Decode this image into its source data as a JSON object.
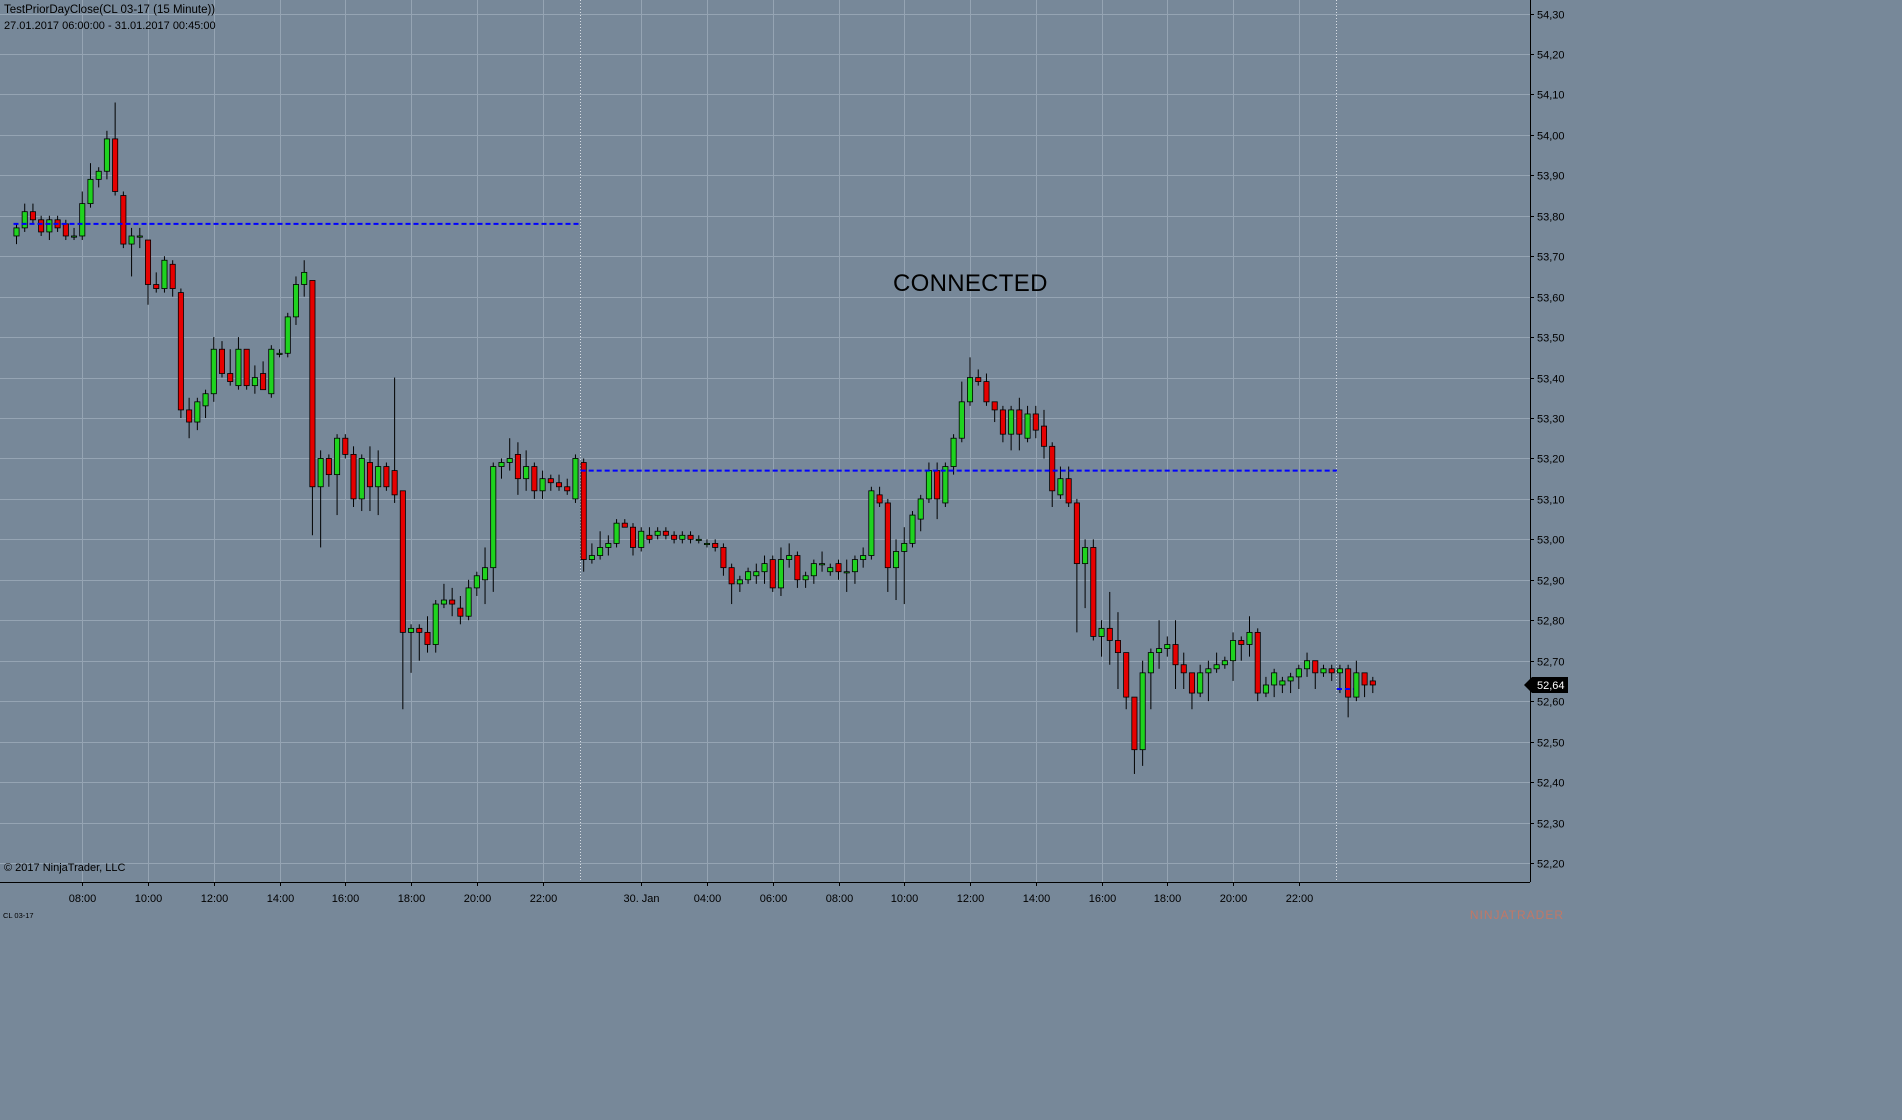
{
  "header": {
    "title": "TestPriorDayClose(CL 03-17 (15 Minute))",
    "range": "27.01.2017 06:00:00 - 31.01.2017 00:45:00"
  },
  "watermark": "CONNECTED",
  "footer": {
    "copyright": "© 2017 NinjaTrader, LLC",
    "instrument": "CL 03-17",
    "brand": "NINJATRADER"
  },
  "colors": {
    "background": "#778899",
    "up": "#1fd31f",
    "down": "#e60000",
    "prior_close_line": "#0000ff",
    "price_badge": "#000000"
  },
  "chart_data": {
    "type": "candlestick",
    "interval": "15 Minute",
    "yrange": [
      52.16,
      54.36
    ],
    "y_ticks": [
      {
        "v": 54.3,
        "label": "54,30"
      },
      {
        "v": 54.2,
        "label": "54,20"
      },
      {
        "v": 54.1,
        "label": "54,10"
      },
      {
        "v": 54.0,
        "label": "54,00"
      },
      {
        "v": 53.9,
        "label": "53,90"
      },
      {
        "v": 53.8,
        "label": "53,80"
      },
      {
        "v": 53.7,
        "label": "53,70"
      },
      {
        "v": 53.6,
        "label": "53,60"
      },
      {
        "v": 53.5,
        "label": "53,50"
      },
      {
        "v": 53.4,
        "label": "53,40"
      },
      {
        "v": 53.3,
        "label": "53,30"
      },
      {
        "v": 53.2,
        "label": "53,20"
      },
      {
        "v": 53.1,
        "label": "53,10"
      },
      {
        "v": 53.0,
        "label": "53,00"
      },
      {
        "v": 52.9,
        "label": "52,90"
      },
      {
        "v": 52.8,
        "label": "52,80"
      },
      {
        "v": 52.7,
        "label": "52,70"
      },
      {
        "v": 52.6,
        "label": "52,60"
      },
      {
        "v": 52.5,
        "label": "52,50"
      },
      {
        "v": 52.4,
        "label": "52,40"
      },
      {
        "v": 52.3,
        "label": "52,30"
      },
      {
        "v": 52.2,
        "label": "52,20"
      }
    ],
    "x_ticks": [
      {
        "label": "08:00",
        "i": 8
      },
      {
        "label": "10:00",
        "i": 16
      },
      {
        "label": "12:00",
        "i": 24
      },
      {
        "label": "14:00",
        "i": 32
      },
      {
        "label": "16:00",
        "i": 40
      },
      {
        "label": "18:00",
        "i": 48
      },
      {
        "label": "20:00",
        "i": 56
      },
      {
        "label": "22:00",
        "i": 64
      },
      {
        "label": "30. Jan",
        "i": 76
      },
      {
        "label": "04:00",
        "i": 84
      },
      {
        "label": "06:00",
        "i": 92
      },
      {
        "label": "08:00",
        "i": 100
      },
      {
        "label": "10:00",
        "i": 108
      },
      {
        "label": "12:00",
        "i": 116
      },
      {
        "label": "14:00",
        "i": 124
      },
      {
        "label": "16:00",
        "i": 132
      },
      {
        "label": "18:00",
        "i": 140
      },
      {
        "label": "20:00",
        "i": 148
      },
      {
        "label": "22:00",
        "i": 156
      }
    ],
    "session_breaks": [
      68.5,
      160.5
    ],
    "prior_close_lines": [
      {
        "price": 53.78,
        "from": 0,
        "to": 69
      },
      {
        "price": 53.17,
        "from": 69,
        "to": 161
      },
      {
        "price": 52.63,
        "from": 161,
        "to": 163
      }
    ],
    "last_price": {
      "value": 52.64,
      "label": "52,64"
    },
    "ohlc": [
      [
        53.75,
        53.78,
        53.73,
        53.77
      ],
      [
        53.77,
        53.83,
        53.76,
        53.81
      ],
      [
        53.81,
        53.83,
        53.78,
        53.79
      ],
      [
        53.79,
        53.8,
        53.75,
        53.76
      ],
      [
        53.76,
        53.8,
        53.74,
        53.79
      ],
      [
        53.79,
        53.8,
        53.76,
        53.77
      ],
      [
        53.78,
        53.79,
        53.74,
        53.75
      ],
      [
        53.75,
        53.77,
        53.74,
        53.75
      ],
      [
        53.75,
        53.86,
        53.74,
        53.83
      ],
      [
        53.83,
        53.93,
        53.82,
        53.89
      ],
      [
        53.89,
        53.92,
        53.87,
        53.91
      ],
      [
        53.91,
        54.01,
        53.89,
        53.99
      ],
      [
        53.99,
        54.08,
        53.85,
        53.86
      ],
      [
        53.85,
        53.86,
        53.72,
        53.73
      ],
      [
        53.73,
        53.77,
        53.65,
        53.75
      ],
      [
        53.75,
        53.77,
        53.72,
        53.75
      ],
      [
        53.74,
        53.74,
        53.58,
        53.63
      ],
      [
        53.63,
        53.66,
        53.61,
        53.62
      ],
      [
        53.62,
        53.7,
        53.61,
        53.69
      ],
      [
        53.68,
        53.69,
        53.6,
        53.62
      ],
      [
        53.61,
        53.62,
        53.3,
        53.32
      ],
      [
        53.32,
        53.35,
        53.25,
        53.29
      ],
      [
        53.29,
        53.35,
        53.27,
        53.34
      ],
      [
        53.33,
        53.37,
        53.3,
        53.36
      ],
      [
        53.36,
        53.5,
        53.34,
        53.47
      ],
      [
        53.47,
        53.49,
        53.4,
        53.41
      ],
      [
        53.41,
        53.47,
        53.38,
        53.39
      ],
      [
        53.38,
        53.5,
        53.37,
        53.47
      ],
      [
        53.47,
        53.47,
        53.37,
        53.38
      ],
      [
        53.38,
        53.43,
        53.36,
        53.4
      ],
      [
        53.41,
        53.44,
        53.37,
        53.37
      ],
      [
        53.36,
        53.48,
        53.35,
        53.47
      ],
      [
        53.46,
        53.47,
        53.45,
        53.46
      ],
      [
        53.46,
        53.56,
        53.45,
        53.55
      ],
      [
        53.55,
        53.65,
        53.53,
        53.63
      ],
      [
        53.63,
        53.69,
        53.6,
        53.66
      ],
      [
        53.64,
        53.64,
        53.01,
        53.13
      ],
      [
        53.13,
        53.22,
        52.98,
        53.2
      ],
      [
        53.2,
        53.21,
        53.13,
        53.16
      ],
      [
        53.16,
        53.26,
        53.06,
        53.25
      ],
      [
        53.25,
        53.26,
        53.2,
        53.21
      ],
      [
        53.21,
        53.23,
        53.08,
        53.1
      ],
      [
        53.1,
        53.21,
        53.07,
        53.2
      ],
      [
        53.19,
        53.23,
        53.07,
        53.13
      ],
      [
        53.13,
        53.22,
        53.06,
        53.18
      ],
      [
        53.18,
        53.19,
        53.12,
        53.13
      ],
      [
        53.17,
        53.4,
        53.09,
        53.11
      ],
      [
        53.12,
        53.12,
        52.58,
        52.77
      ],
      [
        52.77,
        52.79,
        52.67,
        52.78
      ],
      [
        52.78,
        52.79,
        52.7,
        52.77
      ],
      [
        52.77,
        52.81,
        52.72,
        52.74
      ],
      [
        52.74,
        52.85,
        52.72,
        52.84
      ],
      [
        52.84,
        52.89,
        52.83,
        52.85
      ],
      [
        52.85,
        52.88,
        52.81,
        52.84
      ],
      [
        52.83,
        52.86,
        52.79,
        52.81
      ],
      [
        52.81,
        52.9,
        52.8,
        52.88
      ],
      [
        52.88,
        52.92,
        52.86,
        52.91
      ],
      [
        52.9,
        52.98,
        52.84,
        52.93
      ],
      [
        52.93,
        53.19,
        52.87,
        53.18
      ],
      [
        53.18,
        53.2,
        53.15,
        53.19
      ],
      [
        53.19,
        53.25,
        53.17,
        53.2
      ],
      [
        53.21,
        53.24,
        53.11,
        53.15
      ],
      [
        53.15,
        53.22,
        53.12,
        53.18
      ],
      [
        53.18,
        53.19,
        53.1,
        53.12
      ],
      [
        53.12,
        53.17,
        53.1,
        53.15
      ],
      [
        53.15,
        53.16,
        53.12,
        53.14
      ],
      [
        53.14,
        53.16,
        53.12,
        53.13
      ],
      [
        53.13,
        53.15,
        53.11,
        53.12
      ],
      [
        53.1,
        53.21,
        53.09,
        53.2
      ],
      [
        53.19,
        53.2,
        52.92,
        52.95
      ],
      [
        52.95,
        52.99,
        52.94,
        52.96
      ],
      [
        52.96,
        53.02,
        52.95,
        52.98
      ],
      [
        52.98,
        53.01,
        52.96,
        52.99
      ],
      [
        52.99,
        53.05,
        52.98,
        53.04
      ],
      [
        53.04,
        53.05,
        53.03,
        53.03
      ],
      [
        53.03,
        53.04,
        52.96,
        52.98
      ],
      [
        52.98,
        53.03,
        52.97,
        53.02
      ],
      [
        53.01,
        53.03,
        52.99,
        53.0
      ],
      [
        53.01,
        53.03,
        53.0,
        53.02
      ],
      [
        53.02,
        53.03,
        53.0,
        53.01
      ],
      [
        53.01,
        53.02,
        52.99,
        53.0
      ],
      [
        53.0,
        53.02,
        52.99,
        53.01
      ],
      [
        53.01,
        53.02,
        52.99,
        53.0
      ],
      [
        53.0,
        53.01,
        52.99,
        53.0
      ],
      [
        52.99,
        53.0,
        52.98,
        52.99
      ],
      [
        52.99,
        53.0,
        52.97,
        52.98
      ],
      [
        52.98,
        52.99,
        52.91,
        52.93
      ],
      [
        52.93,
        52.94,
        52.84,
        52.89
      ],
      [
        52.89,
        52.91,
        52.87,
        52.9
      ],
      [
        52.9,
        52.93,
        52.89,
        52.92
      ],
      [
        52.91,
        52.94,
        52.89,
        52.92
      ],
      [
        52.92,
        52.96,
        52.89,
        52.94
      ],
      [
        52.95,
        52.96,
        52.87,
        52.88
      ],
      [
        52.88,
        52.98,
        52.86,
        52.95
      ],
      [
        52.95,
        52.99,
        52.93,
        52.96
      ],
      [
        52.96,
        52.97,
        52.88,
        52.9
      ],
      [
        52.9,
        52.92,
        52.88,
        52.91
      ],
      [
        52.91,
        52.95,
        52.89,
        52.94
      ],
      [
        52.94,
        52.97,
        52.92,
        52.94
      ],
      [
        52.92,
        52.94,
        52.91,
        52.93
      ],
      [
        52.94,
        52.95,
        52.9,
        52.92
      ],
      [
        52.92,
        52.95,
        52.87,
        52.92
      ],
      [
        52.92,
        52.96,
        52.89,
        52.95
      ],
      [
        52.95,
        52.98,
        52.93,
        52.96
      ],
      [
        52.96,
        53.13,
        52.95,
        53.12
      ],
      [
        53.11,
        53.13,
        53.08,
        53.09
      ],
      [
        53.09,
        53.1,
        52.87,
        52.93
      ],
      [
        52.93,
        53.0,
        52.85,
        52.97
      ],
      [
        52.97,
        53.03,
        52.84,
        52.99
      ],
      [
        52.99,
        53.07,
        52.98,
        53.06
      ],
      [
        53.05,
        53.11,
        53.02,
        53.1
      ],
      [
        53.1,
        53.19,
        53.09,
        53.17
      ],
      [
        53.17,
        53.19,
        53.05,
        53.1
      ],
      [
        53.09,
        53.19,
        53.08,
        53.18
      ],
      [
        53.18,
        53.26,
        53.16,
        53.25
      ],
      [
        53.25,
        53.39,
        53.24,
        53.34
      ],
      [
        53.34,
        53.45,
        53.33,
        53.4
      ],
      [
        53.4,
        53.42,
        53.38,
        53.39
      ],
      [
        53.39,
        53.41,
        53.33,
        53.34
      ],
      [
        53.34,
        53.34,
        53.29,
        53.32
      ],
      [
        53.32,
        53.33,
        53.24,
        53.26
      ],
      [
        53.26,
        53.33,
        53.22,
        53.32
      ],
      [
        53.32,
        53.35,
        53.22,
        53.26
      ],
      [
        53.25,
        53.33,
        53.24,
        53.31
      ],
      [
        53.31,
        53.33,
        53.25,
        53.27
      ],
      [
        53.28,
        53.32,
        53.2,
        53.23
      ],
      [
        53.23,
        53.24,
        53.08,
        53.12
      ],
      [
        53.11,
        53.18,
        53.1,
        53.15
      ],
      [
        53.15,
        53.18,
        53.08,
        53.09
      ],
      [
        53.09,
        53.1,
        52.77,
        52.94
      ],
      [
        52.94,
        53.0,
        52.83,
        52.98
      ],
      [
        52.98,
        53.0,
        52.75,
        52.76
      ],
      [
        52.76,
        52.8,
        52.71,
        52.78
      ],
      [
        52.78,
        52.87,
        52.69,
        52.75
      ],
      [
        52.75,
        52.82,
        52.63,
        52.72
      ],
      [
        52.72,
        52.72,
        52.58,
        52.61
      ],
      [
        52.61,
        52.61,
        52.42,
        52.48
      ],
      [
        52.48,
        52.7,
        52.44,
        52.67
      ],
      [
        52.67,
        52.73,
        52.58,
        52.72
      ],
      [
        52.72,
        52.8,
        52.68,
        52.73
      ],
      [
        52.73,
        52.76,
        52.71,
        52.74
      ],
      [
        52.74,
        52.8,
        52.63,
        52.69
      ],
      [
        52.69,
        52.72,
        52.63,
        52.67
      ],
      [
        52.67,
        52.67,
        52.58,
        52.62
      ],
      [
        52.62,
        52.69,
        52.61,
        52.67
      ],
      [
        52.67,
        52.7,
        52.6,
        52.68
      ],
      [
        52.68,
        52.72,
        52.67,
        52.69
      ],
      [
        52.69,
        52.71,
        52.68,
        52.7
      ],
      [
        52.7,
        52.77,
        52.65,
        52.75
      ],
      [
        52.75,
        52.76,
        52.7,
        52.74
      ],
      [
        52.74,
        52.81,
        52.71,
        52.77
      ],
      [
        52.77,
        52.78,
        52.6,
        52.62
      ],
      [
        52.62,
        52.66,
        52.61,
        52.64
      ],
      [
        52.64,
        52.68,
        52.61,
        52.67
      ],
      [
        52.64,
        52.66,
        52.62,
        52.65
      ],
      [
        52.65,
        52.67,
        52.62,
        52.66
      ],
      [
        52.66,
        52.69,
        52.63,
        52.68
      ],
      [
        52.68,
        52.72,
        52.66,
        52.7
      ],
      [
        52.7,
        52.7,
        52.63,
        52.67
      ],
      [
        52.67,
        52.69,
        52.66,
        52.68
      ],
      [
        52.68,
        52.69,
        52.65,
        52.67
      ],
      [
        52.67,
        52.69,
        52.62,
        52.68
      ],
      [
        52.68,
        52.69,
        52.56,
        52.61
      ],
      [
        52.61,
        52.7,
        52.6,
        52.67
      ],
      [
        52.67,
        52.67,
        52.61,
        52.64
      ],
      [
        52.65,
        52.66,
        52.62,
        52.64
      ]
    ]
  }
}
